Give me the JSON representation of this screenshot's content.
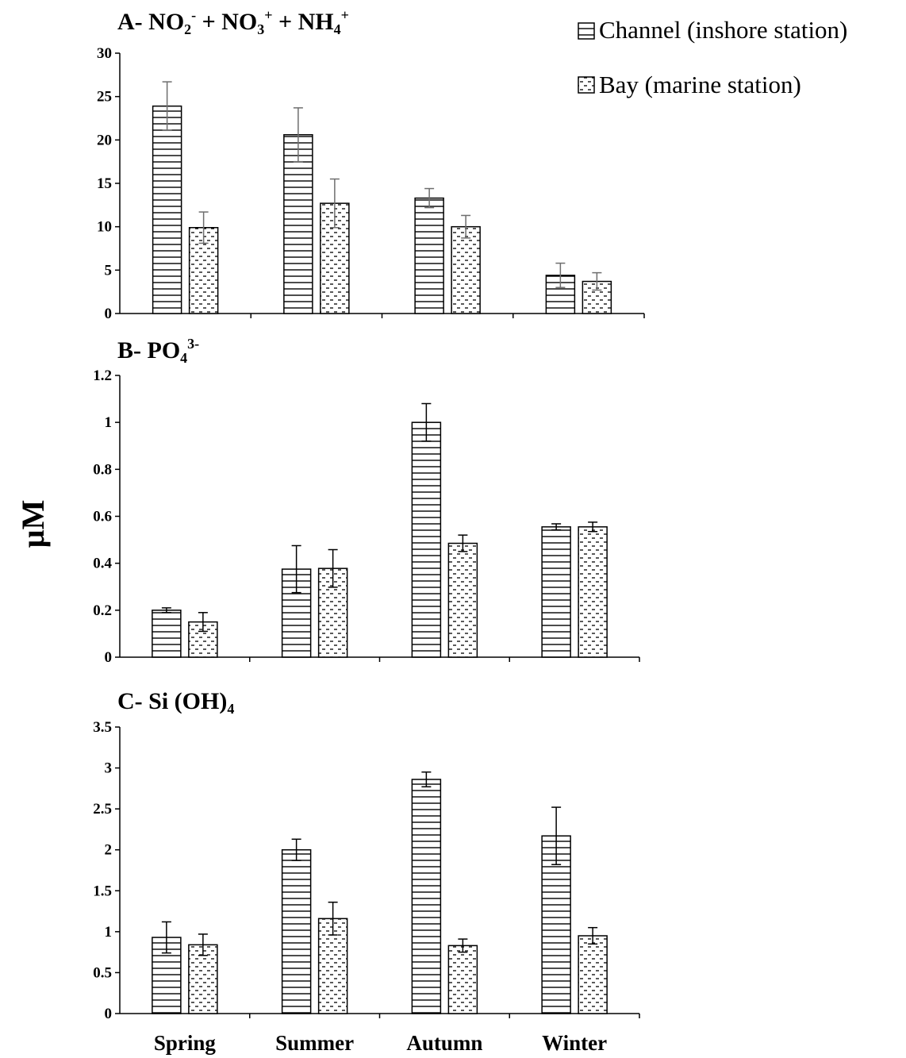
{
  "y_axis_label": "µM",
  "legend": {
    "items": [
      {
        "label": "Channel (inshore station)",
        "pattern": "horizontal-lines"
      },
      {
        "label": "Bay (marine station)",
        "pattern": "dashes"
      }
    ]
  },
  "chart_data": [
    {
      "type": "bar",
      "title": {
        "prefix": "A- ",
        "parts": [
          {
            "t": "NO"
          },
          {
            "t": "2",
            "sub": true
          },
          {
            "t": "-",
            "sup": true
          },
          {
            "t": " + NO"
          },
          {
            "t": "3",
            "sub": true
          },
          {
            "t": "+",
            "sup": true
          },
          {
            "t": " + NH"
          },
          {
            "t": "4",
            "sub": true
          },
          {
            "t": "+",
            "sup": true
          }
        ]
      },
      "categories": [
        "Spring",
        "Summer",
        "Autumn",
        "Winter"
      ],
      "series": [
        {
          "name": "Channel (inshore station)",
          "values": [
            23.9,
            20.6,
            13.3,
            4.4
          ],
          "errors": [
            2.8,
            3.1,
            1.1,
            1.4
          ]
        },
        {
          "name": "Bay (marine station)",
          "values": [
            9.9,
            12.7,
            10.0,
            3.7
          ],
          "errors": [
            1.8,
            2.8,
            1.3,
            1.0
          ]
        }
      ],
      "ylim": [
        0,
        30
      ],
      "yticks": [
        0,
        5,
        10,
        15,
        20,
        25,
        30
      ],
      "ytick_labels": [
        "0",
        "5",
        "10",
        "15",
        "20",
        "25",
        "30"
      ],
      "show_category_labels": false
    },
    {
      "type": "bar",
      "title": {
        "prefix": "B- ",
        "parts": [
          {
            "t": "PO"
          },
          {
            "t": "4",
            "sub": true
          },
          {
            "t": "3-",
            "sup": true
          }
        ]
      },
      "categories": [
        "Spring",
        "Summer",
        "Autumn",
        "Winter"
      ],
      "series": [
        {
          "name": "Channel (inshore station)",
          "values": [
            0.2,
            0.375,
            1.0,
            0.555
          ],
          "errors": [
            0.01,
            0.1,
            0.08,
            0.013
          ]
        },
        {
          "name": "Bay (marine station)",
          "values": [
            0.15,
            0.378,
            0.485,
            0.555
          ],
          "errors": [
            0.04,
            0.08,
            0.035,
            0.02
          ]
        }
      ],
      "ylim": [
        0,
        1.2
      ],
      "yticks": [
        0,
        0.2,
        0.4,
        0.6,
        0.8,
        1.0,
        1.2
      ],
      "ytick_labels": [
        "0",
        "0.2",
        "0.4",
        "0.6",
        "0.8",
        "1",
        "1.2"
      ],
      "show_category_labels": false
    },
    {
      "type": "bar",
      "title": {
        "prefix": "C- ",
        "parts": [
          {
            "t": "Si (OH)"
          },
          {
            "t": "4",
            "sub": true
          }
        ]
      },
      "categories": [
        "Spring",
        "Summer",
        "Autumn",
        "Winter"
      ],
      "series": [
        {
          "name": "Channel (inshore station)",
          "values": [
            0.93,
            2.0,
            2.86,
            2.17
          ],
          "errors": [
            0.19,
            0.13,
            0.09,
            0.35
          ]
        },
        {
          "name": "Bay (marine station)",
          "values": [
            0.84,
            1.16,
            0.83,
            0.95
          ],
          "errors": [
            0.13,
            0.2,
            0.08,
            0.1
          ]
        }
      ],
      "ylim": [
        0,
        3.5
      ],
      "yticks": [
        0,
        0.5,
        1.0,
        1.5,
        2.0,
        2.5,
        3.0,
        3.5
      ],
      "ytick_labels": [
        "0",
        "0.5",
        "1",
        "1.5",
        "2",
        "2.5",
        "3",
        "3.5"
      ],
      "show_category_labels": true
    }
  ]
}
